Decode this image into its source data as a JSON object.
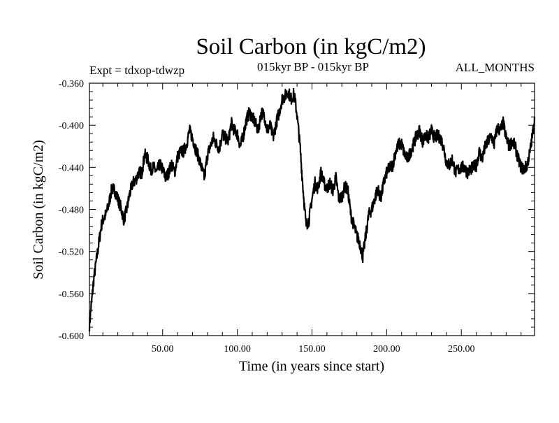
{
  "chart_data": {
    "type": "line",
    "title": "Soil Carbon (in kgC/m2)",
    "subtitle": "015kyr BP - 015kyr BP",
    "left_note": "Expt = tdxop-tdwzp",
    "right_note": "ALL_MONTHS",
    "xlabel": "Time (in years since start)",
    "ylabel": "Soil Carbon (in kgC/m2)",
    "xlim": [
      1,
      299
    ],
    "ylim": [
      -0.6,
      -0.36
    ],
    "x_ticks": [
      50,
      100,
      150,
      200,
      250
    ],
    "x_tick_labels": [
      "50.00",
      "100.00",
      "150.00",
      "200.00",
      "250.00"
    ],
    "y_ticks": [
      -0.6,
      -0.56,
      -0.52,
      -0.48,
      -0.44,
      -0.4,
      -0.36
    ],
    "y_tick_labels": [
      "-0.600",
      "-0.560",
      "-0.520",
      "-0.480",
      "-0.440",
      "-0.400",
      "-0.360"
    ],
    "grid": false,
    "line_color": "#000000",
    "series": [
      {
        "x": [
          1,
          2,
          3,
          4,
          5,
          6,
          7,
          8,
          9,
          10,
          12,
          14,
          16,
          18,
          20,
          22,
          24,
          26,
          28,
          30,
          32,
          34,
          36,
          38,
          40,
          42,
          44,
          46,
          48,
          50,
          52,
          54,
          56,
          58,
          60,
          62,
          64,
          66,
          68,
          70,
          72,
          74,
          76,
          78,
          80,
          82,
          84,
          86,
          88,
          90,
          92,
          94,
          96,
          98,
          100,
          102,
          104,
          106,
          108,
          110,
          112,
          114,
          116,
          118,
          120,
          122,
          124,
          126,
          128,
          130,
          132,
          134,
          136,
          138,
          140,
          142,
          144,
          146,
          148,
          150,
          152,
          154,
          156,
          158,
          160,
          162,
          164,
          166,
          168,
          170,
          172,
          174,
          176,
          178,
          180,
          182,
          184,
          186,
          188,
          190,
          192,
          194,
          196,
          198,
          200,
          202,
          204,
          206,
          208,
          210,
          212,
          214,
          216,
          218,
          220,
          222,
          224,
          226,
          228,
          230,
          232,
          234,
          236,
          238,
          240,
          242,
          244,
          246,
          248,
          250,
          252,
          254,
          256,
          258,
          260,
          262,
          264,
          266,
          268,
          270,
          272,
          274,
          276,
          278,
          280,
          282,
          284,
          286,
          288,
          290,
          292,
          294,
          296,
          298,
          299
        ],
        "y": [
          -0.59,
          -0.575,
          -0.56,
          -0.545,
          -0.535,
          -0.525,
          -0.515,
          -0.505,
          -0.495,
          -0.49,
          -0.485,
          -0.475,
          -0.46,
          -0.462,
          -0.47,
          -0.478,
          -0.49,
          -0.48,
          -0.465,
          -0.455,
          -0.452,
          -0.445,
          -0.445,
          -0.428,
          -0.432,
          -0.442,
          -0.44,
          -0.445,
          -0.437,
          -0.442,
          -0.45,
          -0.445,
          -0.437,
          -0.445,
          -0.43,
          -0.425,
          -0.425,
          -0.418,
          -0.405,
          -0.412,
          -0.422,
          -0.43,
          -0.44,
          -0.45,
          -0.428,
          -0.42,
          -0.412,
          -0.418,
          -0.422,
          -0.408,
          -0.412,
          -0.415,
          -0.398,
          -0.405,
          -0.408,
          -0.42,
          -0.41,
          -0.395,
          -0.388,
          -0.392,
          -0.398,
          -0.405,
          -0.388,
          -0.39,
          -0.405,
          -0.4,
          -0.412,
          -0.398,
          -0.388,
          -0.375,
          -0.372,
          -0.368,
          -0.375,
          -0.37,
          -0.39,
          -0.42,
          -0.46,
          -0.495,
          -0.49,
          -0.47,
          -0.455,
          -0.46,
          -0.445,
          -0.455,
          -0.46,
          -0.455,
          -0.462,
          -0.45,
          -0.47,
          -0.468,
          -0.458,
          -0.462,
          -0.485,
          -0.495,
          -0.505,
          -0.512,
          -0.525,
          -0.505,
          -0.485,
          -0.48,
          -0.47,
          -0.46,
          -0.47,
          -0.455,
          -0.445,
          -0.44,
          -0.438,
          -0.425,
          -0.418,
          -0.418,
          -0.428,
          -0.432,
          -0.425,
          -0.418,
          -0.41,
          -0.405,
          -0.415,
          -0.41,
          -0.412,
          -0.405,
          -0.412,
          -0.41,
          -0.412,
          -0.42,
          -0.435,
          -0.438,
          -0.432,
          -0.445,
          -0.442,
          -0.44,
          -0.44,
          -0.445,
          -0.442,
          -0.44,
          -0.438,
          -0.425,
          -0.432,
          -0.42,
          -0.415,
          -0.41,
          -0.418,
          -0.402,
          -0.405,
          -0.398,
          -0.412,
          -0.42,
          -0.415,
          -0.42,
          -0.432,
          -0.44,
          -0.442,
          -0.438,
          -0.425,
          -0.405,
          -0.392
        ]
      }
    ]
  }
}
